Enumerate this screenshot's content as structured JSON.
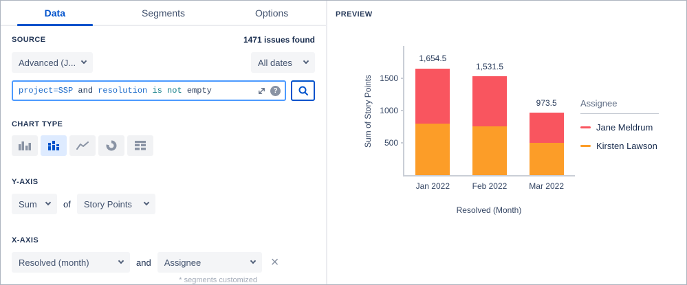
{
  "tabs": [
    {
      "label": "Data",
      "active": true
    },
    {
      "label": "Segments",
      "active": false
    },
    {
      "label": "Options",
      "active": false
    }
  ],
  "source": {
    "heading": "SOURCE",
    "issues_found": "1471 issues found",
    "project_source_dropdown": "Advanced (J...",
    "date_range_dropdown": "All dates",
    "jql_query": "project=SSP and resolution is not empty",
    "jql_tokens": [
      {
        "text": "project=SSP ",
        "color": "#1B6AC9"
      },
      {
        "text": "and ",
        "color": "#1D3557"
      },
      {
        "text": "resolution ",
        "color": "#1B6AC9"
      },
      {
        "text": "is not ",
        "color": "#0E7C86"
      },
      {
        "text": "empty",
        "color": "#344563"
      }
    ]
  },
  "chart_type": {
    "heading": "CHART TYPE",
    "options": [
      "bar",
      "stacked-bar",
      "line",
      "pie",
      "table"
    ],
    "selected": "stacked-bar"
  },
  "y_axis": {
    "heading": "Y-AXIS",
    "aggregation_dropdown": "Sum",
    "connector": "of",
    "field_dropdown": "Story Points"
  },
  "x_axis": {
    "heading": "X-AXIS",
    "field1_dropdown": "Resolved (month)",
    "connector": "and",
    "field2_dropdown": "Assignee",
    "footnote": "* segments customized"
  },
  "preview": {
    "heading": "PREVIEW"
  },
  "colors": {
    "accent": "#0052CC",
    "bar_red": "#F9555F",
    "bar_orange": "#FC9D28"
  },
  "chart_data": {
    "type": "bar",
    "stacked": true,
    "categories": [
      "Jan 2022",
      "Feb 2022",
      "Mar 2022"
    ],
    "series": [
      {
        "name": "Kirsten Lawson",
        "color": "#FC9D28",
        "values": [
          800,
          760,
          505
        ]
      },
      {
        "name": "Jane Meldrum",
        "color": "#F9555F",
        "values": [
          854.5,
          771.5,
          468.5
        ]
      }
    ],
    "totals": [
      1654.5,
      1531.5,
      973.5
    ],
    "total_labels": [
      "1,654.5",
      "1,531.5",
      "973.5"
    ],
    "xlabel": "Resolved (Month)",
    "ylabel": "Sum of Story Points",
    "ylim": [
      0,
      2000
    ],
    "yticks": [
      500,
      1000,
      1500
    ],
    "legend_title": "Assignee",
    "legend_order": [
      "Jane Meldrum",
      "Kirsten Lawson"
    ],
    "legend_position": "right",
    "grid": false
  }
}
